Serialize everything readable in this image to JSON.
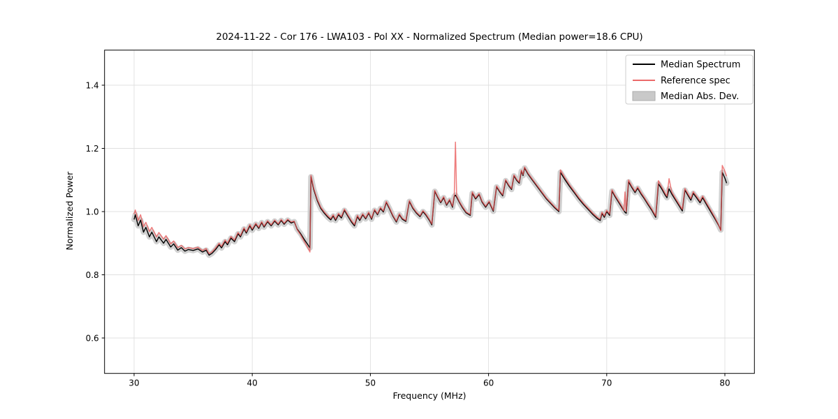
{
  "figure": {
    "background": "#ffffff"
  },
  "chart_data": {
    "type": "line",
    "title": "2024-11-22 - Cor 176 - LWA103 - Pol XX - Normalized Spectrum (Median power=18.6 CPU)",
    "xlabel": "Frequency (MHz)",
    "ylabel": "Normalized Power",
    "xlim": [
      27.5,
      82.5
    ],
    "ylim": [
      0.488,
      1.511
    ],
    "xticks": [
      30,
      40,
      50,
      60,
      70,
      80
    ],
    "yticks": [
      0.6,
      0.8,
      1.0,
      1.2,
      1.4
    ],
    "grid": true,
    "grid_color": "#e0e0e0",
    "legend_position": "upper right",
    "series": [
      {
        "name": "Median Spectrum",
        "color": "#000000",
        "style": "line"
      },
      {
        "name": "Reference spec",
        "color": "#e85050",
        "style": "line",
        "opacity": 0.75
      },
      {
        "name": "Median Abs. Dev.",
        "color": "#c9c9c9",
        "style": "band"
      }
    ],
    "mad_halfwidth": 0.012,
    "points_format": [
      "frequency_MHz",
      "median_spectrum",
      "reference_spec"
    ],
    "points": [
      [
        30.0,
        0.975,
        0.992
      ],
      [
        30.1,
        0.99,
        1.005
      ],
      [
        30.35,
        0.955,
        0.972
      ],
      [
        30.55,
        0.973,
        0.99
      ],
      [
        30.8,
        0.935,
        0.952
      ],
      [
        31.0,
        0.95,
        0.966
      ],
      [
        31.3,
        0.92,
        0.937
      ],
      [
        31.5,
        0.935,
        0.95
      ],
      [
        31.9,
        0.905,
        0.92
      ],
      [
        32.1,
        0.92,
        0.934
      ],
      [
        32.5,
        0.9,
        0.913
      ],
      [
        32.7,
        0.912,
        0.924
      ],
      [
        33.1,
        0.888,
        0.898
      ],
      [
        33.35,
        0.898,
        0.907
      ],
      [
        33.7,
        0.878,
        0.886
      ],
      [
        34.0,
        0.886,
        0.893
      ],
      [
        34.3,
        0.875,
        0.882
      ],
      [
        34.6,
        0.88,
        0.886
      ],
      [
        35.0,
        0.877,
        0.883
      ],
      [
        35.4,
        0.882,
        0.887
      ],
      [
        35.8,
        0.872,
        0.877
      ],
      [
        36.1,
        0.878,
        0.883
      ],
      [
        36.35,
        0.862,
        0.867
      ],
      [
        36.6,
        0.868,
        0.873
      ],
      [
        36.9,
        0.88,
        0.885
      ],
      [
        37.2,
        0.895,
        0.9
      ],
      [
        37.4,
        0.885,
        0.89
      ],
      [
        37.7,
        0.905,
        0.91
      ],
      [
        37.9,
        0.895,
        0.9
      ],
      [
        38.2,
        0.916,
        0.921
      ],
      [
        38.5,
        0.905,
        0.91
      ],
      [
        38.8,
        0.93,
        0.934
      ],
      [
        39.0,
        0.92,
        0.924
      ],
      [
        39.3,
        0.945,
        0.949
      ],
      [
        39.5,
        0.932,
        0.936
      ],
      [
        39.8,
        0.955,
        0.959
      ],
      [
        40.0,
        0.941,
        0.945
      ],
      [
        40.3,
        0.96,
        0.963
      ],
      [
        40.55,
        0.947,
        0.95
      ],
      [
        40.8,
        0.965,
        0.968
      ],
      [
        41.0,
        0.951,
        0.954
      ],
      [
        41.3,
        0.968,
        0.971
      ],
      [
        41.6,
        0.955,
        0.958
      ],
      [
        41.9,
        0.97,
        0.973
      ],
      [
        42.2,
        0.958,
        0.961
      ],
      [
        42.45,
        0.972,
        0.975
      ],
      [
        42.7,
        0.96,
        0.963
      ],
      [
        43.0,
        0.973,
        0.976
      ],
      [
        43.3,
        0.964,
        0.967
      ],
      [
        43.55,
        0.968,
        0.97
      ],
      [
        43.8,
        0.945,
        0.943
      ],
      [
        44.1,
        0.93,
        0.926
      ],
      [
        44.4,
        0.912,
        0.906
      ],
      [
        44.7,
        0.896,
        0.886
      ],
      [
        44.88,
        0.885,
        0.872
      ],
      [
        44.97,
        1.11,
        1.115
      ],
      [
        45.2,
        1.07,
        1.074
      ],
      [
        45.5,
        1.035,
        1.039
      ],
      [
        45.8,
        1.01,
        1.014
      ],
      [
        46.1,
        0.995,
        0.999
      ],
      [
        46.4,
        0.982,
        0.986
      ],
      [
        46.65,
        0.974,
        0.978
      ],
      [
        46.85,
        0.986,
        0.99
      ],
      [
        47.05,
        0.972,
        0.976
      ],
      [
        47.3,
        0.99,
        0.994
      ],
      [
        47.55,
        0.98,
        0.984
      ],
      [
        47.8,
        1.004,
        1.008
      ],
      [
        48.1,
        0.985,
        0.989
      ],
      [
        48.4,
        0.967,
        0.971
      ],
      [
        48.65,
        0.955,
        0.959
      ],
      [
        48.9,
        0.984,
        0.988
      ],
      [
        49.1,
        0.972,
        0.976
      ],
      [
        49.35,
        0.99,
        0.993
      ],
      [
        49.6,
        0.977,
        0.98
      ],
      [
        49.85,
        0.995,
        0.998
      ],
      [
        50.1,
        0.976,
        0.979
      ],
      [
        50.35,
        1.004,
        1.007
      ],
      [
        50.6,
        0.99,
        0.993
      ],
      [
        50.85,
        1.01,
        1.013
      ],
      [
        51.1,
        0.999,
        1.002
      ],
      [
        51.35,
        1.029,
        1.032
      ],
      [
        51.6,
        1.01,
        1.013
      ],
      [
        51.9,
        0.986,
        0.989
      ],
      [
        52.2,
        0.967,
        0.97
      ],
      [
        52.45,
        0.99,
        0.993
      ],
      [
        52.7,
        0.976,
        0.979
      ],
      [
        53.0,
        0.969,
        0.972
      ],
      [
        53.3,
        1.032,
        1.035
      ],
      [
        53.6,
        1.01,
        1.013
      ],
      [
        53.9,
        0.995,
        0.998
      ],
      [
        54.2,
        0.984,
        0.987
      ],
      [
        54.45,
        1.0,
        1.003
      ],
      [
        54.7,
        0.989,
        0.992
      ],
      [
        55.0,
        0.972,
        0.975
      ],
      [
        55.2,
        0.958,
        0.961
      ],
      [
        55.45,
        1.064,
        1.067
      ],
      [
        55.7,
        1.045,
        1.048
      ],
      [
        55.95,
        1.028,
        1.031
      ],
      [
        56.2,
        1.044,
        1.047
      ],
      [
        56.45,
        1.02,
        1.023
      ],
      [
        56.7,
        1.036,
        1.039
      ],
      [
        56.95,
        1.014,
        1.017
      ],
      [
        57.1,
        1.048,
        1.051
      ],
      [
        57.2,
        1.052,
        1.22
      ],
      [
        57.3,
        1.046,
        1.05
      ],
      [
        57.55,
        1.028,
        1.031
      ],
      [
        57.8,
        1.012,
        1.015
      ],
      [
        58.1,
        0.996,
        0.999
      ],
      [
        58.45,
        0.988,
        0.991
      ],
      [
        58.62,
        1.058,
        1.062
      ],
      [
        58.9,
        1.04,
        1.043
      ],
      [
        59.2,
        1.054,
        1.057
      ],
      [
        59.45,
        1.03,
        1.033
      ],
      [
        59.75,
        1.014,
        1.017
      ],
      [
        60.05,
        1.03,
        1.033
      ],
      [
        60.4,
        1.001,
        1.004
      ],
      [
        60.68,
        1.078,
        1.081
      ],
      [
        60.95,
        1.062,
        1.065
      ],
      [
        61.2,
        1.05,
        1.053
      ],
      [
        61.45,
        1.098,
        1.101
      ],
      [
        61.7,
        1.082,
        1.085
      ],
      [
        61.95,
        1.07,
        1.073
      ],
      [
        62.15,
        1.113,
        1.116
      ],
      [
        62.4,
        1.098,
        1.101
      ],
      [
        62.6,
        1.09,
        1.093
      ],
      [
        62.78,
        1.128,
        1.131
      ],
      [
        62.92,
        1.114,
        1.117
      ],
      [
        63.05,
        1.138,
        1.141
      ],
      [
        63.35,
        1.118,
        1.121
      ],
      [
        63.7,
        1.1,
        1.103
      ],
      [
        64.1,
        1.08,
        1.083
      ],
      [
        64.5,
        1.06,
        1.063
      ],
      [
        64.9,
        1.04,
        1.043
      ],
      [
        65.3,
        1.024,
        1.027
      ],
      [
        65.6,
        1.012,
        1.015
      ],
      [
        65.95,
        1.0,
        1.003
      ],
      [
        66.08,
        1.124,
        1.132
      ],
      [
        66.45,
        1.102,
        1.108
      ],
      [
        66.85,
        1.08,
        1.085
      ],
      [
        67.25,
        1.06,
        1.064
      ],
      [
        67.65,
        1.04,
        1.044
      ],
      [
        68.05,
        1.022,
        1.026
      ],
      [
        68.45,
        1.006,
        1.01
      ],
      [
        68.85,
        0.99,
        0.994
      ],
      [
        69.2,
        0.978,
        0.982
      ],
      [
        69.45,
        0.972,
        0.976
      ],
      [
        69.6,
        0.994,
        0.998
      ],
      [
        69.8,
        0.982,
        0.986
      ],
      [
        70.0,
        1.0,
        1.004
      ],
      [
        70.25,
        0.988,
        0.992
      ],
      [
        70.45,
        1.065,
        1.069
      ],
      [
        70.7,
        1.048,
        1.052
      ],
      [
        71.0,
        1.03,
        1.034
      ],
      [
        71.3,
        1.012,
        1.016
      ],
      [
        71.45,
        1.003,
        1.003
      ],
      [
        71.55,
        0.998,
        1.062
      ],
      [
        71.65,
        0.995,
        1.0
      ],
      [
        71.85,
        1.094,
        1.1
      ],
      [
        72.1,
        1.078,
        1.082
      ],
      [
        72.4,
        1.06,
        1.064
      ],
      [
        72.62,
        1.074,
        1.078
      ],
      [
        72.9,
        1.056,
        1.06
      ],
      [
        73.2,
        1.04,
        1.044
      ],
      [
        73.5,
        1.022,
        1.026
      ],
      [
        73.8,
        1.005,
        1.009
      ],
      [
        74.15,
        0.982,
        0.986
      ],
      [
        74.38,
        1.088,
        1.098
      ],
      [
        74.65,
        1.072,
        1.078
      ],
      [
        74.95,
        1.052,
        1.057
      ],
      [
        75.1,
        1.044,
        1.049
      ],
      [
        75.28,
        1.072,
        1.104
      ],
      [
        75.5,
        1.056,
        1.062
      ],
      [
        75.8,
        1.038,
        1.043
      ],
      [
        76.1,
        1.02,
        1.025
      ],
      [
        76.4,
        1.002,
        1.007
      ],
      [
        76.62,
        1.068,
        1.073
      ],
      [
        76.9,
        1.05,
        1.055
      ],
      [
        77.12,
        1.036,
        1.041
      ],
      [
        77.32,
        1.058,
        1.063
      ],
      [
        77.6,
        1.044,
        1.049
      ],
      [
        77.9,
        1.028,
        1.033
      ],
      [
        78.12,
        1.044,
        1.049
      ],
      [
        78.45,
        1.022,
        1.027
      ],
      [
        78.8,
        1.0,
        1.005
      ],
      [
        79.15,
        0.978,
        0.982
      ],
      [
        79.45,
        0.958,
        0.96
      ],
      [
        79.65,
        0.942,
        0.94
      ],
      [
        79.78,
        1.124,
        1.146
      ],
      [
        80.0,
        1.106,
        1.128
      ],
      [
        80.15,
        1.09,
        1.112
      ]
    ]
  }
}
